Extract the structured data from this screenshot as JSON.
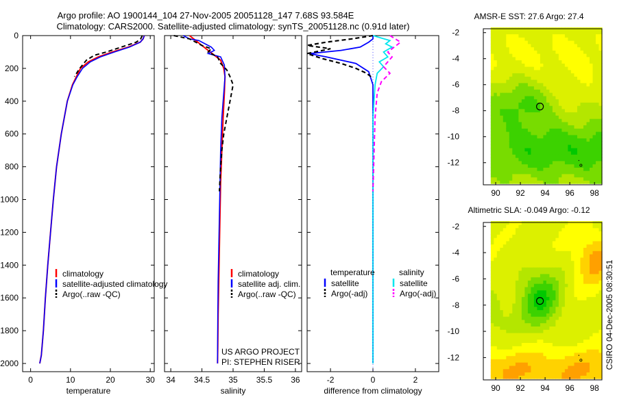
{
  "title_line1": "Argo profile: AO 1900144_104 27-Nov-2005 20051128_147 7.68S 93.584E",
  "title_line2": "Climatology: CARS2000. Satellite-adjusted climatology: synTS_20051128.nc (0.91d later)",
  "footer_stamp": "CSIRO 04-Dec-2005 08:30:51",
  "colors": {
    "climatology": "#ff0000",
    "satellite": "#0000ff",
    "argo": "#000000",
    "sal_satellite": "#00e5ee",
    "sal_argo": "#ff00ff"
  },
  "chart_data": [
    {
      "type": "line",
      "xlabel": "temperature",
      "ylabel": "",
      "xlim": [
        -2,
        31
      ],
      "ylim": [
        2050,
        0
      ],
      "x_ticks": [
        0,
        10,
        20,
        30
      ],
      "y_ticks": [
        0,
        200,
        400,
        600,
        800,
        1000,
        1200,
        1400,
        1600,
        1800,
        2000
      ],
      "legend": [
        "climatology",
        "satellite-adjusted climatology",
        "Argo(..raw -QC)"
      ],
      "series": [
        {
          "name": "climatology",
          "x": [
            28.5,
            28.2,
            27.5,
            24.5,
            20.5,
            17,
            14.5,
            12.5,
            11.5,
            10.5,
            9.2,
            7.7,
            6.5,
            5.7,
            5.0,
            4.3,
            3.7,
            3.2,
            2.7,
            2.3
          ],
          "y": [
            0,
            20,
            40,
            70,
            100,
            130,
            160,
            200,
            250,
            300,
            400,
            600,
            800,
            1000,
            1200,
            1400,
            1600,
            1800,
            1950,
            2000
          ]
        },
        {
          "name": "satellite-adjusted climatology",
          "x": [
            28.5,
            28.2,
            27.5,
            24.8,
            21,
            17.5,
            15,
            13,
            11.7,
            10.6,
            9.2,
            7.7,
            6.5,
            5.7,
            5.0,
            4.3,
            3.7,
            3.2,
            2.7,
            2.3
          ],
          "y": [
            0,
            20,
            40,
            70,
            100,
            130,
            160,
            200,
            250,
            300,
            400,
            600,
            800,
            1000,
            1200,
            1400,
            1600,
            1800,
            1950,
            2000
          ]
        },
        {
          "name": "Argo(..raw -QC)",
          "x": [
            28,
            27.6,
            26.5,
            24,
            21.5,
            19,
            16,
            14,
            12.3,
            11
          ],
          "y": [
            0,
            20,
            40,
            60,
            80,
            100,
            120,
            150,
            200,
            250
          ]
        }
      ]
    },
    {
      "type": "line",
      "xlabel": "salinity",
      "xlim": [
        33.9,
        36.1
      ],
      "ylim": [
        2050,
        0
      ],
      "x_ticks": [
        34,
        34.5,
        35,
        35.5,
        36
      ],
      "y_ticks": [
        0,
        200,
        400,
        600,
        800,
        1000,
        1200,
        1400,
        1600,
        1800,
        2000
      ],
      "legend": [
        "climatology",
        "satellite adj. clim.",
        "Argo(..raw -QC)"
      ],
      "annotations": [
        "US ARGO PROJECT",
        "PI: STEPHEN RISER"
      ],
      "series": [
        {
          "name": "climatology",
          "x": [
            34.3,
            34.4,
            34.5,
            34.6,
            34.7,
            34.8,
            34.85,
            34.87,
            34.86,
            34.84,
            34.82,
            34.8,
            34.79,
            34.78,
            34.77,
            34.76,
            34.755,
            34.75
          ],
          "y": [
            0,
            30,
            60,
            90,
            120,
            150,
            200,
            250,
            350,
            500,
            700,
            900,
            1100,
            1300,
            1500,
            1700,
            1900,
            2000
          ]
        },
        {
          "name": "satellite adj. clim.",
          "x": [
            34.2,
            34.3,
            34.45,
            34.55,
            34.65,
            34.7,
            34.6,
            34.8,
            34.86,
            34.87,
            34.85,
            34.82,
            34.8,
            34.79,
            34.78,
            34.77,
            34.76,
            34.755,
            34.75
          ],
          "y": [
            0,
            20,
            30,
            50,
            70,
            90,
            110,
            130,
            180,
            250,
            350,
            500,
            700,
            900,
            1100,
            1300,
            1500,
            1700,
            2000
          ]
        },
        {
          "name": "Argo(..raw -QC)",
          "x": [
            34.05,
            34.3,
            34.4,
            34.5,
            34.65,
            34.6,
            34.75,
            34.8,
            34.9,
            34.95,
            35.0,
            34.95,
            34.9,
            34.85,
            34.82,
            34.8,
            34.78
          ],
          "y": [
            0,
            20,
            40,
            60,
            80,
            100,
            130,
            170,
            210,
            250,
            300,
            400,
            500,
            600,
            700,
            800,
            950
          ]
        }
      ]
    },
    {
      "type": "line",
      "xlabel": "difference from climatology",
      "xlim": [
        -3.1,
        3.1
      ],
      "ylim": [
        2050,
        0
      ],
      "x_ticks": [
        -2,
        0,
        2
      ],
      "y_ticks": [
        0,
        200,
        400,
        600,
        800,
        1000,
        1200,
        1400,
        1600,
        1800,
        2000
      ],
      "legend_groups": [
        "temperature",
        "salinity"
      ],
      "legend": [
        "satellite",
        "Argo(-adj)",
        "satellite",
        "Argo(-adj)"
      ],
      "series": [
        {
          "name": "temperature satellite",
          "x": [
            0,
            0,
            -0.2,
            -0.6,
            -1.5,
            -3.0,
            -2.2,
            -0.8,
            -0.2,
            0,
            0
          ],
          "y": [
            0,
            20,
            40,
            70,
            90,
            110,
            130,
            170,
            220,
            300,
            2000
          ]
        },
        {
          "name": "temperature Argo(-adj)",
          "x": [
            0,
            -1.0,
            -2.2,
            -3.1,
            -2.0,
            -3.1,
            -2.4,
            -1.5,
            -0.8,
            -0.3,
            0
          ],
          "y": [
            0,
            20,
            40,
            60,
            80,
            110,
            140,
            170,
            200,
            230,
            260
          ]
        },
        {
          "name": "salinity satellite",
          "x": [
            0,
            0.8,
            0.6,
            0.9,
            0.5,
            0.7,
            0.3,
            0.5,
            0.2,
            0.1,
            0,
            0
          ],
          "y": [
            0,
            30,
            50,
            70,
            100,
            130,
            160,
            190,
            230,
            300,
            500,
            2000
          ]
        },
        {
          "name": "salinity Argo(-adj)",
          "x": [
            0.8,
            1.3,
            1.0,
            0.7,
            0.9,
            0.7,
            0.5,
            0.8,
            0.4,
            0.2,
            0.1,
            0
          ],
          "y": [
            0,
            40,
            70,
            100,
            130,
            160,
            190,
            230,
            280,
            350,
            500,
            950
          ]
        }
      ]
    },
    {
      "type": "heatmap",
      "title": "AMSR-E SST: 27.6 Argo: 27.4",
      "xlim": [
        89,
        98.6
      ],
      "ylim": [
        -13.7,
        -1.7
      ],
      "x_ticks": [
        90,
        92,
        94,
        96,
        98
      ],
      "y_ticks": [
        -2,
        -4,
        -6,
        -8,
        -10,
        -12
      ],
      "marker": {
        "lon": 93.584,
        "lat": -7.68
      },
      "colors": [
        "#00c800",
        "#3cd200",
        "#78dc00",
        "#b4e600",
        "#dcf000",
        "#ffff00"
      ],
      "prev_positions": [
        {
          "lon": 96.7,
          "lat": -11.8
        },
        {
          "lon": 96.9,
          "lat": -12.2
        }
      ]
    },
    {
      "type": "heatmap",
      "title": "Altimetric SLA: -0.049 Argo: -0.12",
      "xlim": [
        89,
        98.6
      ],
      "ylim": [
        -13.7,
        -1.7
      ],
      "x_ticks": [
        90,
        92,
        94,
        96,
        98
      ],
      "y_ticks": [
        -2,
        -4,
        -6,
        -8,
        -10,
        -12
      ],
      "marker": {
        "lon": 93.584,
        "lat": -7.68
      },
      "colors": [
        "#00c800",
        "#3cd200",
        "#78dc00",
        "#b4e600",
        "#dcf000",
        "#ffff00",
        "#ffd200",
        "#ffa000"
      ],
      "prev_positions": [
        {
          "lon": 96.7,
          "lat": -11.8
        },
        {
          "lon": 96.9,
          "lat": -12.2
        }
      ]
    }
  ]
}
